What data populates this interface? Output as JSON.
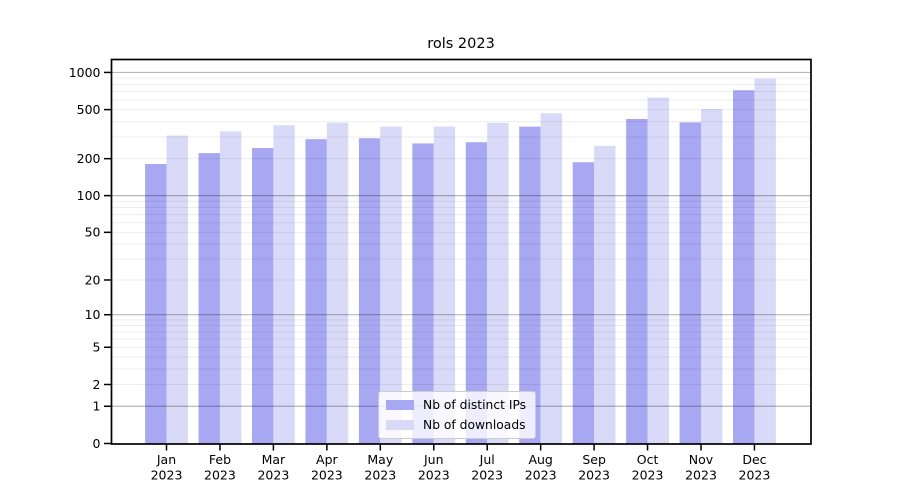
{
  "chart_data": {
    "type": "bar",
    "title": "rols 2023",
    "categories": [
      "Jan 2023",
      "Feb 2023",
      "Mar 2023",
      "Apr 2023",
      "May 2023",
      "Jun 2023",
      "Jul 2023",
      "Aug 2023",
      "Sep 2023",
      "Oct 2023",
      "Nov 2023",
      "Dec 2023"
    ],
    "month_labels": [
      "Jan",
      "Feb",
      "Mar",
      "Apr",
      "May",
      "Jun",
      "Jul",
      "Aug",
      "Sep",
      "Oct",
      "Nov",
      "Dec"
    ],
    "year_label": "2023",
    "series": [
      {
        "name": "Nb of distinct IPs",
        "color": "#a7a7f2",
        "values": [
          181,
          222,
          244,
          288,
          293,
          266,
          272,
          364,
          187,
          420,
          394,
          717
        ]
      },
      {
        "name": "Nb of downloads",
        "color": "#d9d9f8",
        "values": [
          308,
          333,
          373,
          392,
          364,
          364,
          390,
          467,
          254,
          626,
          506,
          892
        ]
      }
    ],
    "yscale": "log1p",
    "ytick_labels": [
      "0",
      "1",
      "2",
      "5",
      "10",
      "20",
      "50",
      "100",
      "200",
      "500",
      "1000"
    ],
    "ytick_values": [
      0,
      1,
      2,
      5,
      10,
      20,
      50,
      100,
      200,
      500,
      1000
    ],
    "major_grid_values": [
      1,
      10,
      100,
      1000
    ],
    "minor_grid_bases": [
      1,
      10,
      100
    ],
    "ylim": [
      0,
      1270
    ],
    "grid": true,
    "legend": {
      "position": "lower center",
      "labels": [
        "Nb of distinct IPs",
        "Nb of downloads"
      ]
    }
  }
}
